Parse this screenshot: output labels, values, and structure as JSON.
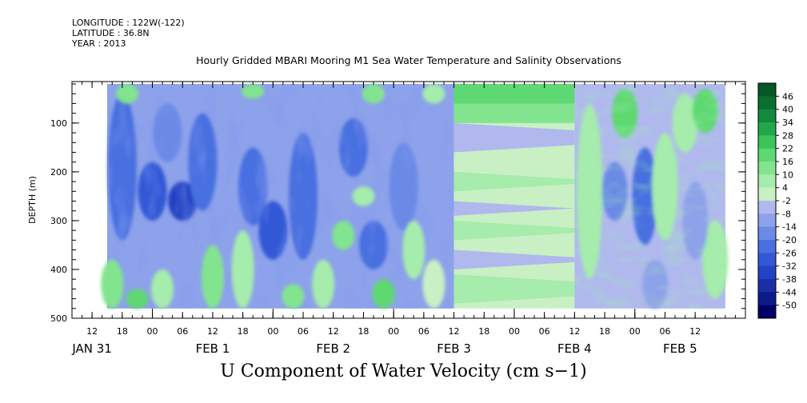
{
  "header": {
    "longitude": "LONGITUDE : 122W(-122)",
    "latitude": "LATITUDE : 36.8N",
    "year": "YEAR : 2013"
  },
  "chart_data": {
    "type": "heatmap",
    "title": "Hourly Gridded MBARI Mooring M1 Sea Water Temperature and Salinity Observations",
    "footer_title": "U Component of Water Velocity (cm s−1)",
    "ylabel": "DEPTH (m)",
    "y_reversed": true,
    "ylim": [
      0,
      500
    ],
    "y_ticks": [
      100,
      200,
      300,
      400,
      500
    ],
    "y_tick_labels": [
      "100",
      "200",
      "300",
      "400",
      "500"
    ],
    "x_hour_labels": [
      "12",
      "18",
      "00",
      "06",
      "12",
      "18",
      "00",
      "06",
      "12",
      "18",
      "00",
      "06",
      "12",
      "18",
      "00",
      "06",
      "12",
      "18",
      "00",
      "06",
      "12"
    ],
    "x_hour_values": [
      -12,
      -6,
      0,
      6,
      12,
      18,
      24,
      30,
      36,
      42,
      48,
      54,
      60,
      66,
      72,
      78,
      84,
      90,
      96,
      102,
      108
    ],
    "x_day_labels": [
      {
        "label": "JAN 31",
        "hour": -12
      },
      {
        "label": "FEB  1",
        "hour": 12
      },
      {
        "label": "FEB  2",
        "hour": 36
      },
      {
        "label": "FEB  3",
        "hour": 60
      },
      {
        "label": "FEB  4",
        "hour": 84
      },
      {
        "label": "FEB  5",
        "hour": 105
      }
    ],
    "colorbar": {
      "levels": [
        -50,
        -44,
        -38,
        -32,
        -26,
        -20,
        -14,
        -8,
        -2,
        4,
        10,
        16,
        22,
        28,
        34,
        40,
        46
      ],
      "labels": [
        "46",
        "40",
        "34",
        "28",
        "22",
        "16",
        "10",
        "4",
        "-2",
        "-8",
        "-14",
        "-20",
        "-26",
        "-32",
        "-38",
        "-44",
        "-50"
      ],
      "min": -50,
      "max": 50,
      "colors": [
        "#000066",
        "#0c1a8a",
        "#1a2ea8",
        "#2442c2",
        "#3258d6",
        "#4a70e0",
        "#6a8ae6",
        "#8da2ea",
        "#b0b8ee",
        "#c8f0c4",
        "#a6ecac",
        "#82e48e",
        "#5ed872",
        "#3ac45a",
        "#22a84a",
        "#128a3c",
        "#0a6e30",
        "#065626"
      ]
    },
    "data_range_hours": [
      -9,
      114
    ],
    "regions": [
      {
        "hours": [
          -9,
          60
        ],
        "depth": [
          20,
          480
        ],
        "level": "blue"
      },
      {
        "hours": [
          60,
          84
        ],
        "depth": [
          20,
          100
        ],
        "level": "green"
      },
      {
        "hours": [
          60,
          84
        ],
        "depth": [
          100,
          480
        ],
        "level": "light-banded"
      },
      {
        "hours": [
          84,
          114
        ],
        "depth": [
          20,
          480
        ],
        "level": "mixed"
      }
    ]
  }
}
